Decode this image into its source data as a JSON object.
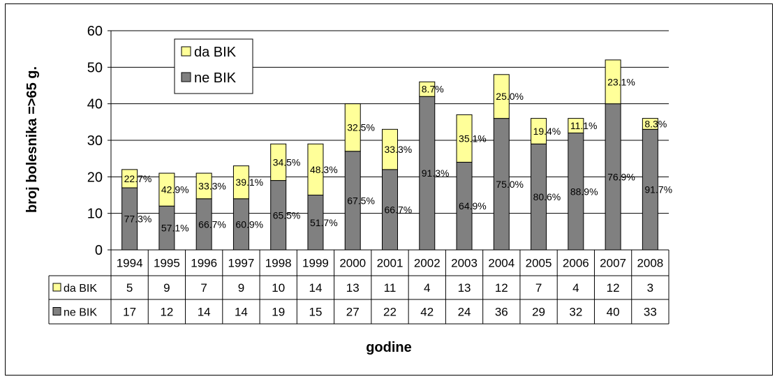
{
  "chart_data": {
    "type": "bar",
    "stacked": true,
    "ylabel": "broj bolesnika =>65 g.",
    "xlabel": "godine",
    "ylim": [
      0,
      60
    ],
    "yticks": [
      0,
      10,
      20,
      30,
      40,
      50,
      60
    ],
    "grid": true,
    "legend_position": "top-left",
    "categories": [
      "1994",
      "1995",
      "1996",
      "1997",
      "1998",
      "1999",
      "2000",
      "2001",
      "2002",
      "2003",
      "2004",
      "2005",
      "2006",
      "2007",
      "2008"
    ],
    "series": [
      {
        "name": "ne BIK",
        "color": "#808080",
        "values": [
          17,
          12,
          14,
          14,
          19,
          15,
          27,
          22,
          42,
          24,
          36,
          29,
          32,
          40,
          33
        ],
        "labels": [
          "77.3%",
          "57.1%",
          "66.7%",
          "60.9%",
          "65.5%",
          "51.7%",
          "67.5%",
          "66.7%",
          "91.3%",
          "64.9%",
          "75.0%",
          "80.6%",
          "88.9%",
          "76.9%",
          "91.7%"
        ]
      },
      {
        "name": "da BIK",
        "color": "#ffff99",
        "values": [
          5,
          9,
          7,
          9,
          10,
          14,
          13,
          11,
          4,
          13,
          12,
          7,
          4,
          12,
          3
        ],
        "labels": [
          "22.7%",
          "42.9%",
          "33.3%",
          "39.1%",
          "34.5%",
          "48.3%",
          "32.5%",
          "33.3%",
          "8.7%",
          "35.1%",
          "25.0%",
          "19.4%",
          "11.1%",
          "23.1%",
          "8.3%"
        ]
      }
    ],
    "table_rows": [
      {
        "name": "da BIK",
        "values": [
          "5",
          "9",
          "7",
          "9",
          "10",
          "14",
          "13",
          "11",
          "4",
          "13",
          "12",
          "7",
          "4",
          "12",
          "3"
        ]
      },
      {
        "name": "ne BIK",
        "values": [
          "17",
          "12",
          "14",
          "14",
          "19",
          "15",
          "27",
          "22",
          "42",
          "24",
          "36",
          "29",
          "32",
          "40",
          "33"
        ]
      }
    ]
  }
}
